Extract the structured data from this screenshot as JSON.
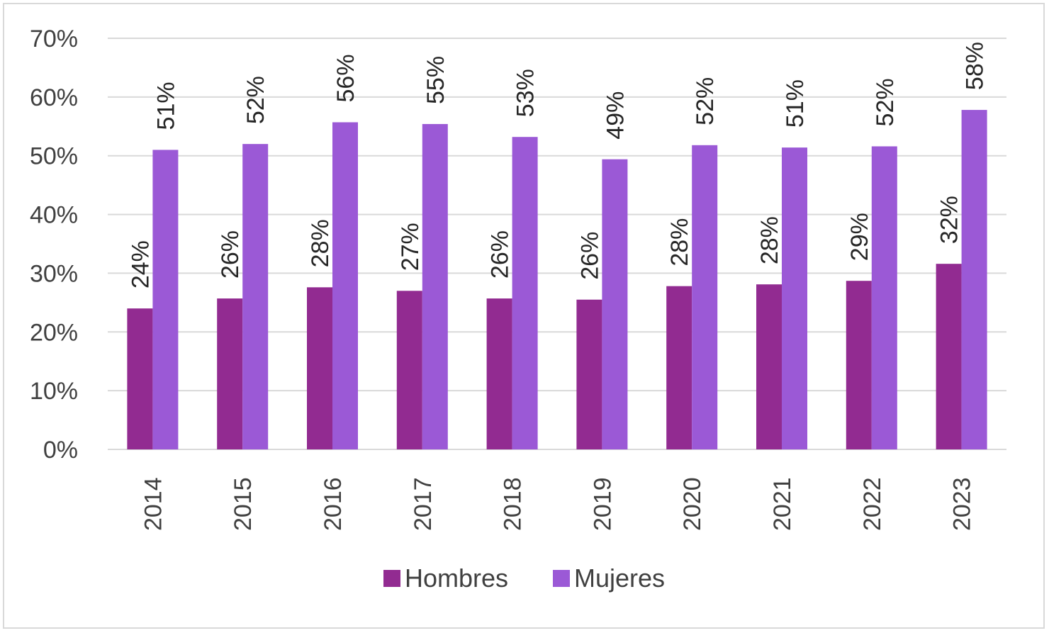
{
  "chart_data": {
    "type": "bar",
    "categories": [
      "2014",
      "2015",
      "2016",
      "2017",
      "2018",
      "2019",
      "2020",
      "2021",
      "2022",
      "2023"
    ],
    "series": [
      {
        "name": "Hombres",
        "color": "#922b91",
        "values": [
          0.24,
          0.257,
          0.276,
          0.27,
          0.257,
          0.255,
          0.278,
          0.281,
          0.287,
          0.316
        ],
        "labels": [
          "24%",
          "26%",
          "28%",
          "27%",
          "26%",
          "26%",
          "28%",
          "28%",
          "29%",
          "32%"
        ]
      },
      {
        "name": "Mujeres",
        "color": "#9b59d6",
        "values": [
          0.51,
          0.52,
          0.557,
          0.554,
          0.532,
          0.494,
          0.518,
          0.514,
          0.516,
          0.578
        ],
        "labels": [
          "51%",
          "52%",
          "56%",
          "55%",
          "53%",
          "49%",
          "52%",
          "51%",
          "52%",
          "58%"
        ]
      }
    ],
    "ylim": [
      0,
      0.7
    ],
    "y_ticks": [
      "0%",
      "10%",
      "20%",
      "30%",
      "40%",
      "50%",
      "60%",
      "70%"
    ],
    "grid": true,
    "legend_position": "bottom",
    "gridline_color": "#d9d9d9",
    "title": "",
    "xlabel": "",
    "ylabel": ""
  }
}
